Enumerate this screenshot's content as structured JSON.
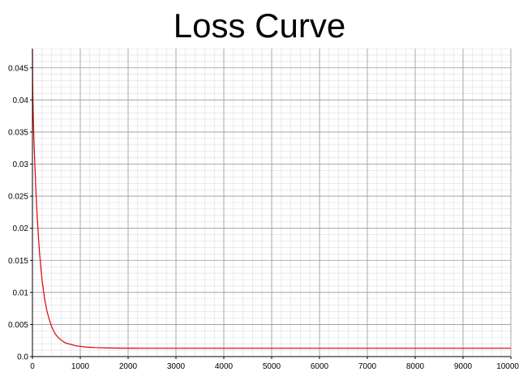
{
  "chart_data": {
    "type": "line",
    "title": "Loss Curve",
    "xlabel": "",
    "ylabel": "",
    "xlim": [
      0,
      10000
    ],
    "ylim": [
      0,
      0.048
    ],
    "x_ticks": [
      0,
      1000,
      2000,
      3000,
      4000,
      5000,
      6000,
      7000,
      8000,
      9000,
      10000
    ],
    "x_tick_labels": [
      "0",
      "1000",
      "2000",
      "3000",
      "4000",
      "5000",
      "6000",
      "7000",
      "8000",
      "9000",
      "10000"
    ],
    "y_ticks": [
      0,
      0.005,
      0.01,
      0.015,
      0.02,
      0.025,
      0.03,
      0.035,
      0.04,
      0.045
    ],
    "y_tick_labels": [
      "0.0",
      "0.005",
      "0.01",
      "0.015",
      "0.02",
      "0.025",
      "0.03",
      "0.035",
      "0.04",
      "0.045"
    ],
    "grid": true,
    "legend": "none",
    "colors": {
      "line": "#dd0000",
      "major_grid": "#999999",
      "minor_grid": "#dddddd",
      "axis": "#000000"
    },
    "series": [
      {
        "x": [
          0,
          5,
          10,
          20,
          35,
          50,
          75,
          100,
          125,
          150,
          200,
          250,
          300,
          350,
          400,
          450,
          500,
          550,
          600,
          650,
          700,
          800,
          900,
          1000,
          1100,
          1200,
          1300,
          1400,
          1500,
          1750,
          2000,
          2500,
          3000,
          4000,
          5000,
          6000,
          7000,
          8000,
          9000,
          10000
        ],
        "y": [
          0.048,
          0.0425,
          0.04,
          0.0365,
          0.033,
          0.03,
          0.0255,
          0.0218,
          0.0187,
          0.016,
          0.012,
          0.0092,
          0.0072,
          0.0058,
          0.0047,
          0.0039,
          0.0033,
          0.0029,
          0.0026,
          0.0023,
          0.0021,
          0.0019,
          0.0017,
          0.0016,
          0.0015,
          0.00145,
          0.0014,
          0.00138,
          0.00136,
          0.00133,
          0.00131,
          0.0013,
          0.0013,
          0.0013,
          0.0013,
          0.0013,
          0.0013,
          0.0013,
          0.0013,
          0.0013
        ]
      }
    ]
  }
}
